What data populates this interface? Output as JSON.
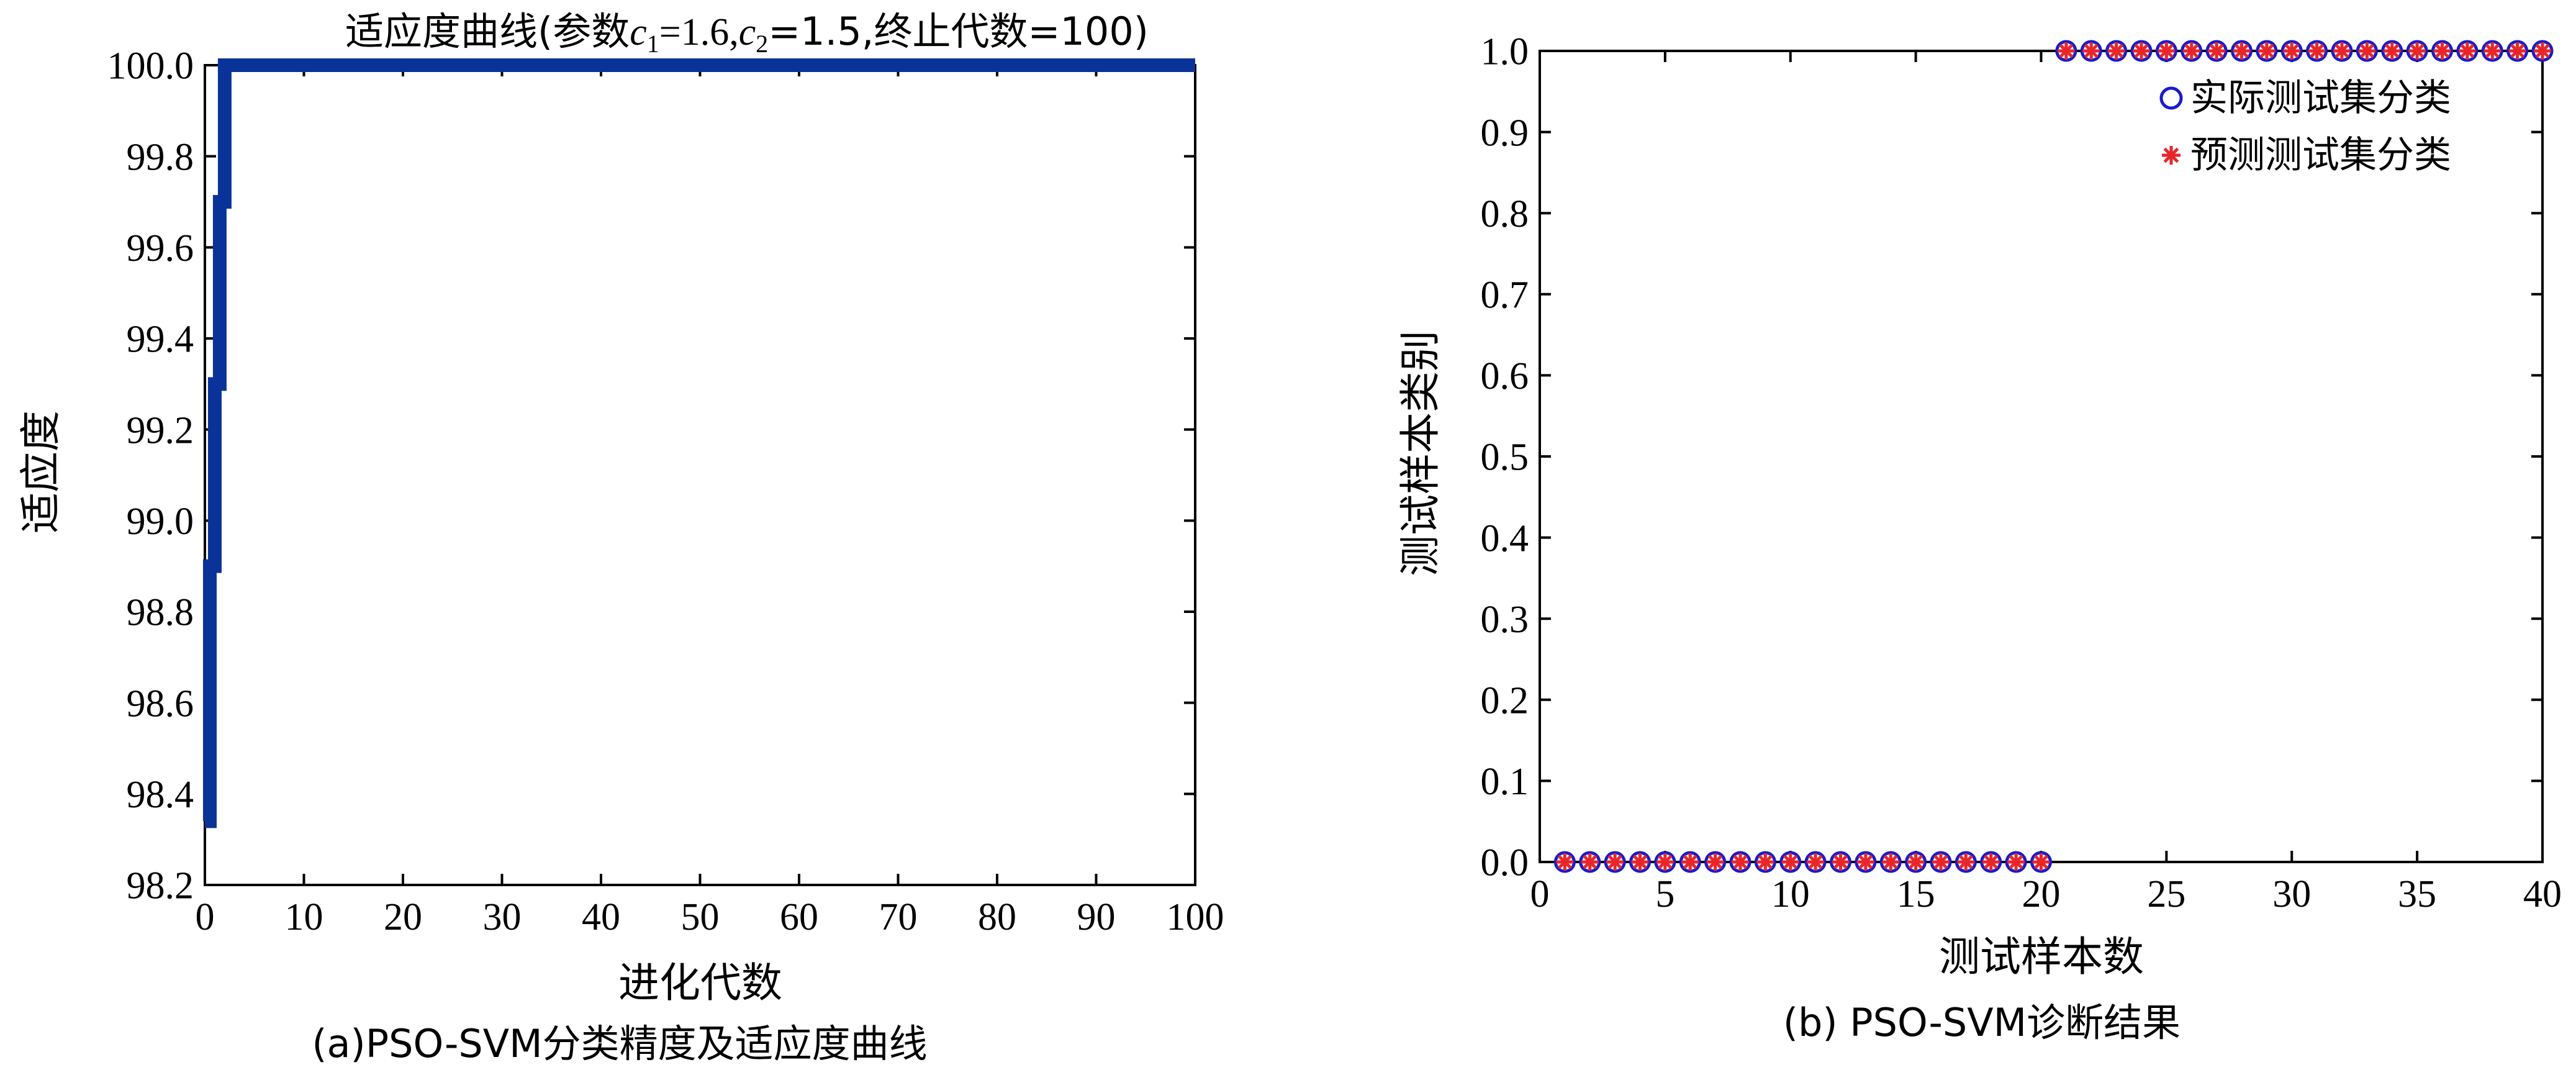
{
  "chart_data": [
    {
      "type": "line",
      "title_prefix": "适应度曲线(参数",
      "title_c1_sym": "c",
      "title_c1_sub": "1",
      "title_c1_val": "=1.6,",
      "title_c2_sym": "c",
      "title_c2_sub": "2",
      "title_c2_val": "=1.5,",
      "title_suffix": "终止代数=100)",
      "xlabel": "进化代数",
      "ylabel": "适应度",
      "caption": "(a)PSO-SVM分类精度及适应度曲线",
      "xlim": [
        0,
        100
      ],
      "ylim": [
        98.2,
        100.0
      ],
      "x_ticks": [
        "0",
        "10",
        "20",
        "30",
        "40",
        "50",
        "60",
        "70",
        "80",
        "90",
        "100"
      ],
      "y_ticks": [
        "98.2",
        "98.4",
        "98.6",
        "98.8",
        "99.0",
        "99.2",
        "99.4",
        "99.6",
        "99.8",
        "100.0"
      ],
      "line_color": "#0a3399",
      "series": [
        {
          "x": [
            0,
            0.5,
            0.5,
            1.0,
            1.0,
            1.5,
            1.5,
            2.0,
            2.0,
            100
          ],
          "y": [
            98.34,
            98.34,
            98.9,
            98.9,
            99.3,
            99.3,
            99.7,
            99.7,
            100.0,
            100.0
          ]
        }
      ]
    },
    {
      "type": "scatter",
      "xlabel": "测试样本数",
      "ylabel": "测试样本类别",
      "caption": "(b) PSO-SVM诊断结果",
      "xlim": [
        0,
        40
      ],
      "ylim": [
        0.0,
        1.0
      ],
      "x_ticks": [
        "0",
        "5",
        "10",
        "15",
        "20",
        "25",
        "30",
        "35",
        "40"
      ],
      "y_ticks": [
        "0.0",
        "0.1",
        "0.2",
        "0.3",
        "0.4",
        "0.5",
        "0.6",
        "0.7",
        "0.8",
        "0.9",
        "1.0"
      ],
      "legend_position": "top-right",
      "series": [
        {
          "name": "实际测试集分类",
          "marker": "circle",
          "color": "#1a1acc",
          "x": [
            1,
            2,
            3,
            4,
            5,
            6,
            7,
            8,
            9,
            10,
            11,
            12,
            13,
            14,
            15,
            16,
            17,
            18,
            19,
            20,
            21,
            22,
            23,
            24,
            25,
            26,
            27,
            28,
            29,
            30,
            31,
            32,
            33,
            34,
            35,
            36,
            37,
            38,
            39,
            40
          ],
          "y": [
            0,
            0,
            0,
            0,
            0,
            0,
            0,
            0,
            0,
            0,
            0,
            0,
            0,
            0,
            0,
            0,
            0,
            0,
            0,
            0,
            1,
            1,
            1,
            1,
            1,
            1,
            1,
            1,
            1,
            1,
            1,
            1,
            1,
            1,
            1,
            1,
            1,
            1,
            1,
            1
          ]
        },
        {
          "name": "预测测试集分类",
          "marker": "asterisk",
          "color": "#e8262a",
          "x": [
            1,
            2,
            3,
            4,
            5,
            6,
            7,
            8,
            9,
            10,
            11,
            12,
            13,
            14,
            15,
            16,
            17,
            18,
            19,
            20,
            21,
            22,
            23,
            24,
            25,
            26,
            27,
            28,
            29,
            30,
            31,
            32,
            33,
            34,
            35,
            36,
            37,
            38,
            39,
            40
          ],
          "y": [
            0,
            0,
            0,
            0,
            0,
            0,
            0,
            0,
            0,
            0,
            0,
            0,
            0,
            0,
            0,
            0,
            0,
            0,
            0,
            0,
            1,
            1,
            1,
            1,
            1,
            1,
            1,
            1,
            1,
            1,
            1,
            1,
            1,
            1,
            1,
            1,
            1,
            1,
            1,
            1
          ]
        }
      ]
    }
  ]
}
